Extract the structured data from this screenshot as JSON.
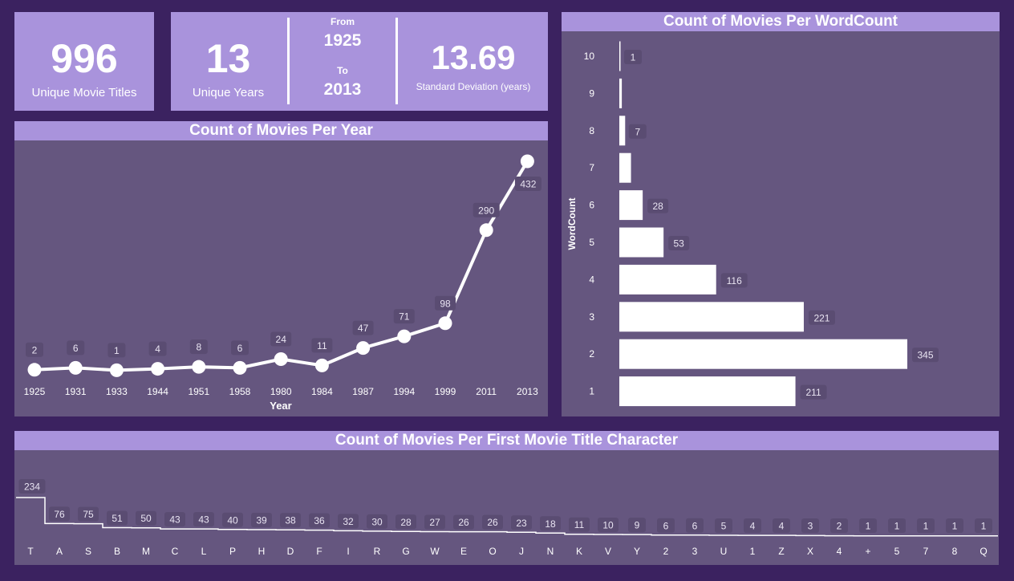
{
  "kpis": {
    "unique_titles": {
      "value": "996",
      "label": "Unique Movie Titles"
    },
    "unique_years": {
      "value": "13",
      "label": "Unique Years"
    },
    "range": {
      "from_label": "From",
      "from_value": "1925",
      "to_label": "To",
      "to_value": "2013"
    },
    "std_dev": {
      "value": "13.69",
      "label": "Standard Deviation (years)"
    }
  },
  "colors": {
    "background": "#3b2260",
    "panel": "#65567f",
    "header": "#a993dc",
    "mark": "#ffffff",
    "label_box": "#5a4c72"
  },
  "chart_data": [
    {
      "type": "line",
      "title": "Count of Movies Per Year",
      "xlabel": "Year",
      "ylabel": "",
      "categories": [
        "1925",
        "1931",
        "1933",
        "1944",
        "1951",
        "1958",
        "1980",
        "1984",
        "1987",
        "1994",
        "1999",
        "2011",
        "2013"
      ],
      "values": [
        2,
        6,
        1,
        4,
        8,
        6,
        24,
        11,
        47,
        71,
        98,
        290,
        432
      ],
      "ylim": [
        0,
        432
      ],
      "grid": false
    },
    {
      "type": "bar",
      "orientation": "horizontal",
      "title": "Count of Movies Per WordCount",
      "xlabel": "",
      "ylabel": "WordCount",
      "categories": [
        "10",
        "9",
        "8",
        "7",
        "6",
        "5",
        "4",
        "3",
        "2",
        "1"
      ],
      "values": [
        1,
        3,
        7,
        14,
        28,
        53,
        116,
        221,
        345,
        211
      ],
      "value_labels": [
        "1",
        "",
        "7",
        "",
        "28",
        "53",
        "116",
        "221",
        "345",
        "211"
      ],
      "xlim": [
        0,
        345
      ],
      "grid": false
    },
    {
      "type": "line",
      "style": "step",
      "title": "Count of Movies Per First Movie Title Character",
      "xlabel": "",
      "ylabel": "",
      "categories": [
        "T",
        "A",
        "S",
        "B",
        "M",
        "C",
        "L",
        "P",
        "H",
        "D",
        "F",
        "I",
        "R",
        "G",
        "W",
        "E",
        "O",
        "J",
        "N",
        "K",
        "V",
        "Y",
        "2",
        "3",
        "U",
        "1",
        "Z",
        "X",
        "4",
        "+",
        "5",
        "7",
        "8",
        "Q"
      ],
      "values": [
        234,
        76,
        75,
        51,
        50,
        43,
        43,
        40,
        39,
        38,
        36,
        32,
        30,
        28,
        27,
        26,
        26,
        23,
        18,
        11,
        10,
        9,
        6,
        6,
        5,
        4,
        4,
        3,
        2,
        1,
        1,
        1,
        1,
        1
      ],
      "ylim": [
        0,
        234
      ],
      "grid": false
    }
  ]
}
